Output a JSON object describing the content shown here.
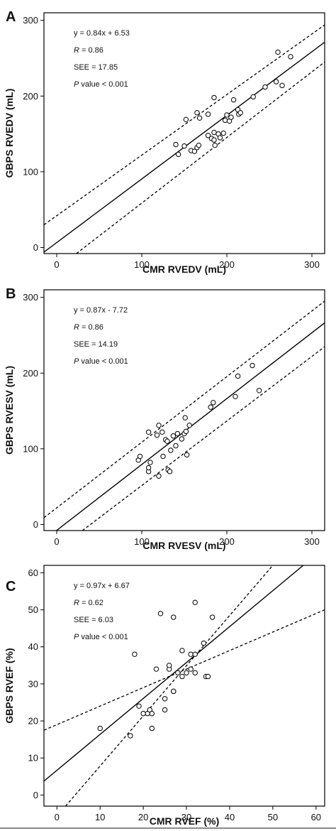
{
  "chart_data": [
    {
      "type": "scatter",
      "panel_label": "A",
      "xlabel": "CMR RVEDV (mL)",
      "ylabel": "GBPS RVEDV (mL)",
      "xlim": [
        -15,
        315
      ],
      "ylim": [
        -8,
        310
      ],
      "xticks": [
        0,
        100,
        200,
        300
      ],
      "yticks": [
        0,
        100,
        200,
        300
      ],
      "annotations": [
        "y = 0.84x + 6.53",
        "R = 0.86",
        "SEE = 17.85",
        "P value < 0.001"
      ],
      "regression": {
        "slope": 0.84,
        "intercept": 6.53
      },
      "confidence_band": {
        "upper": [
          [
            0,
            42
          ],
          [
            300,
            282
          ]
        ],
        "lower": [
          [
            15,
            -15
          ],
          [
            300,
            232
          ]
        ]
      },
      "points": [
        {
          "x": 140,
          "y": 136
        },
        {
          "x": 143,
          "y": 123
        },
        {
          "x": 150,
          "y": 134
        },
        {
          "x": 152,
          "y": 169
        },
        {
          "x": 158,
          "y": 128
        },
        {
          "x": 162,
          "y": 127
        },
        {
          "x": 165,
          "y": 132
        },
        {
          "x": 167,
          "y": 135
        },
        {
          "x": 165,
          "y": 178
        },
        {
          "x": 168,
          "y": 171
        },
        {
          "x": 178,
          "y": 176
        },
        {
          "x": 178,
          "y": 148
        },
        {
          "x": 182,
          "y": 144
        },
        {
          "x": 185,
          "y": 142
        },
        {
          "x": 186,
          "y": 135
        },
        {
          "x": 185,
          "y": 152
        },
        {
          "x": 190,
          "y": 150
        },
        {
          "x": 192,
          "y": 145
        },
        {
          "x": 196,
          "y": 151
        },
        {
          "x": 185,
          "y": 198
        },
        {
          "x": 198,
          "y": 168
        },
        {
          "x": 200,
          "y": 175
        },
        {
          "x": 203,
          "y": 167
        },
        {
          "x": 205,
          "y": 172
        },
        {
          "x": 208,
          "y": 195
        },
        {
          "x": 213,
          "y": 182
        },
        {
          "x": 214,
          "y": 176
        },
        {
          "x": 216,
          "y": 178
        },
        {
          "x": 231,
          "y": 199
        },
        {
          "x": 245,
          "y": 212
        },
        {
          "x": 258,
          "y": 219
        },
        {
          "x": 260,
          "y": 258
        },
        {
          "x": 265,
          "y": 214
        },
        {
          "x": 275,
          "y": 252
        }
      ]
    },
    {
      "type": "scatter",
      "panel_label": "B",
      "xlabel": "CMR RVESV (mL)",
      "ylabel": "GBPS RVESV (mL)",
      "xlim": [
        -15,
        315
      ],
      "ylim": [
        -8,
        310
      ],
      "xticks": [
        0,
        100,
        200,
        300
      ],
      "yticks": [
        0,
        100,
        200,
        300
      ],
      "annotations": [
        "y = 0.87x - 7.72",
        "R = 0.86",
        "SEE = 14.19",
        "P value < 0.001"
      ],
      "regression": {
        "slope": 0.87,
        "intercept": -7.72
      },
      "confidence_band": {
        "upper": [
          [
            0,
            22
          ],
          [
            300,
            282
          ]
        ],
        "lower": [
          [
            22,
            -15
          ],
          [
            300,
            222
          ]
        ]
      },
      "points": [
        {
          "x": 96,
          "y": 85
        },
        {
          "x": 98,
          "y": 90
        },
        {
          "x": 108,
          "y": 70
        },
        {
          "x": 108,
          "y": 75
        },
        {
          "x": 108,
          "y": 122
        },
        {
          "x": 110,
          "y": 82
        },
        {
          "x": 118,
          "y": 118
        },
        {
          "x": 120,
          "y": 64
        },
        {
          "x": 120,
          "y": 131
        },
        {
          "x": 125,
          "y": 90
        },
        {
          "x": 124,
          "y": 122
        },
        {
          "x": 128,
          "y": 112
        },
        {
          "x": 130,
          "y": 110
        },
        {
          "x": 131,
          "y": 72
        },
        {
          "x": 133,
          "y": 70
        },
        {
          "x": 134,
          "y": 98
        },
        {
          "x": 137,
          "y": 117
        },
        {
          "x": 140,
          "y": 104
        },
        {
          "x": 142,
          "y": 120
        },
        {
          "x": 147,
          "y": 113
        },
        {
          "x": 150,
          "y": 120
        },
        {
          "x": 152,
          "y": 123
        },
        {
          "x": 151,
          "y": 141
        },
        {
          "x": 153,
          "y": 92
        },
        {
          "x": 156,
          "y": 131
        },
        {
          "x": 181,
          "y": 155
        },
        {
          "x": 184,
          "y": 161
        },
        {
          "x": 210,
          "y": 169
        },
        {
          "x": 213,
          "y": 196
        },
        {
          "x": 230,
          "y": 210
        },
        {
          "x": 238,
          "y": 177
        }
      ]
    },
    {
      "type": "scatter",
      "panel_label": "C",
      "xlabel": "CMR RVEF (%)",
      "ylabel": "GBPS RVEF (%)",
      "xlim": [
        -3,
        62
      ],
      "ylim": [
        -3,
        62
      ],
      "xticks": [
        0,
        10,
        20,
        30,
        40,
        50,
        60
      ],
      "yticks": [
        0,
        10,
        20,
        30,
        40,
        50,
        60
      ],
      "annotations": [
        "y = 0.97x + 6.67",
        "R = 0.62",
        "SEE = 6.03",
        "P value < 0.001"
      ],
      "regression": {
        "slope": 0.97,
        "intercept": 6.67
      },
      "confidence_band": {
        "upper": [
          [
            0,
            19
          ],
          [
            60,
            49
          ]
        ],
        "lower": [
          [
            2,
            -3
          ],
          [
            50,
            62
          ]
        ]
      },
      "points": [
        {
          "x": 10,
          "y": 18
        },
        {
          "x": 17,
          "y": 16
        },
        {
          "x": 18,
          "y": 38
        },
        {
          "x": 19,
          "y": 24
        },
        {
          "x": 20,
          "y": 22
        },
        {
          "x": 21,
          "y": 22
        },
        {
          "x": 21.5,
          "y": 23
        },
        {
          "x": 22,
          "y": 22
        },
        {
          "x": 22,
          "y": 18
        },
        {
          "x": 23,
          "y": 34
        },
        {
          "x": 24,
          "y": 49
        },
        {
          "x": 25,
          "y": 23
        },
        {
          "x": 25,
          "y": 26
        },
        {
          "x": 26,
          "y": 34
        },
        {
          "x": 26,
          "y": 35
        },
        {
          "x": 27,
          "y": 28
        },
        {
          "x": 27,
          "y": 28
        },
        {
          "x": 27,
          "y": 48
        },
        {
          "x": 28,
          "y": 33
        },
        {
          "x": 29,
          "y": 32
        },
        {
          "x": 29,
          "y": 39
        },
        {
          "x": 30,
          "y": 33
        },
        {
          "x": 31,
          "y": 34
        },
        {
          "x": 31,
          "y": 38
        },
        {
          "x": 32,
          "y": 33
        },
        {
          "x": 32,
          "y": 38
        },
        {
          "x": 32,
          "y": 52
        },
        {
          "x": 34,
          "y": 41
        },
        {
          "x": 34.5,
          "y": 32
        },
        {
          "x": 35,
          "y": 32
        },
        {
          "x": 36,
          "y": 48
        }
      ]
    }
  ]
}
